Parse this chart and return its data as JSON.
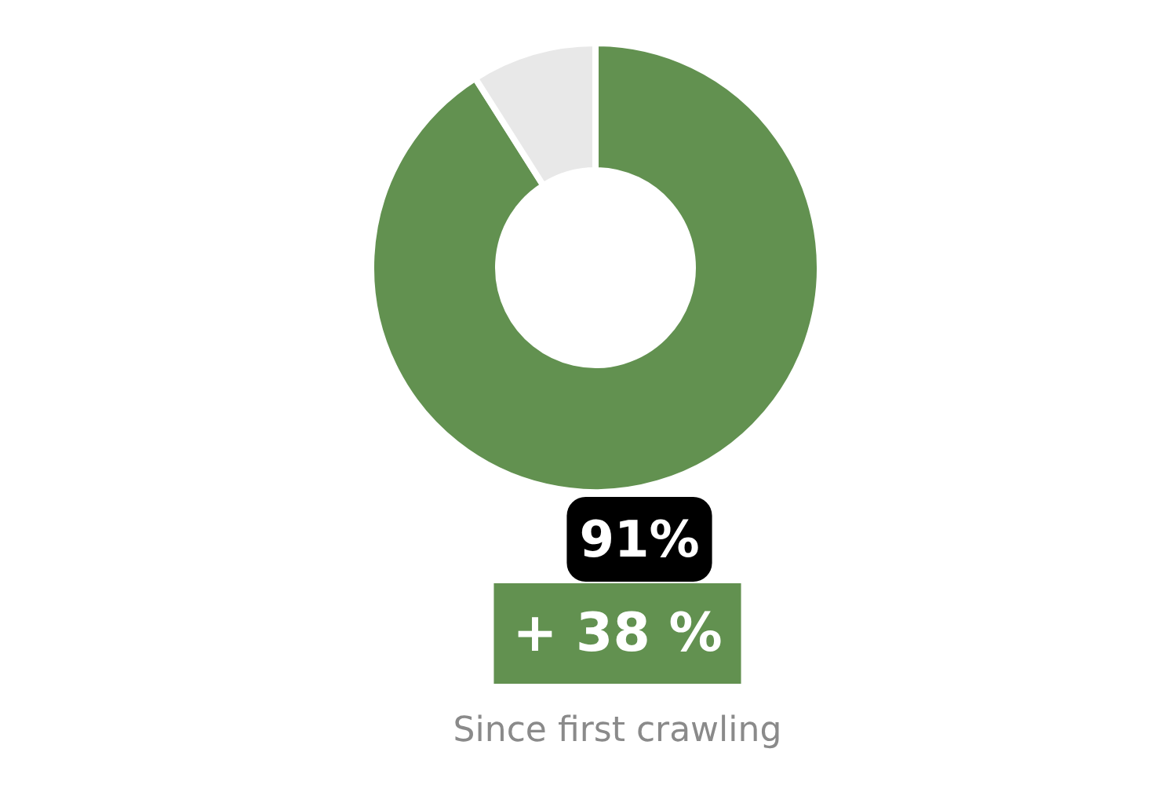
{
  "chart_data": {
    "type": "donut",
    "categories": [
      null,
      null
    ],
    "values": [
      91,
      9
    ],
    "colors": [
      "#629150",
      "#e8e8e8"
    ],
    "value_labels": [
      "91%",
      null
    ],
    "annotations": [
      "+ 38 %",
      "Since first crawling"
    ]
  }
}
